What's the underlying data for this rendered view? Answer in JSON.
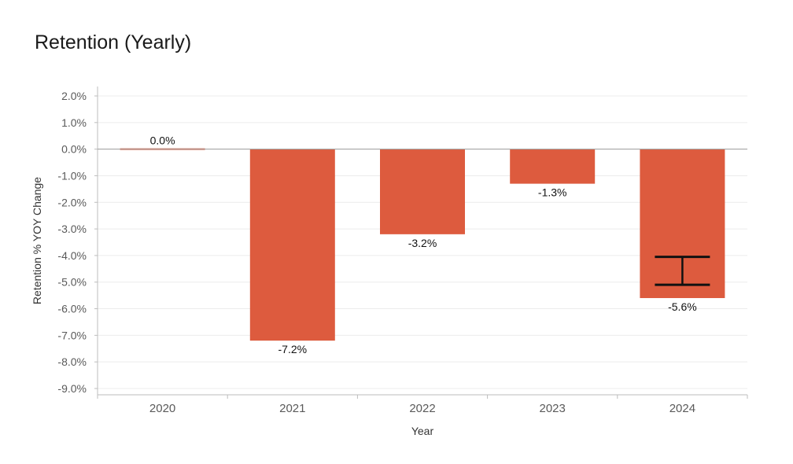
{
  "chart_data": {
    "type": "bar",
    "title": "Retention (Yearly)",
    "xlabel": "Year",
    "ylabel": "Retention % YOY Change",
    "categories": [
      "2020",
      "2021",
      "2022",
      "2023",
      "2024"
    ],
    "values": [
      0.0,
      -7.2,
      -3.2,
      -1.3,
      -5.6
    ],
    "data_labels": [
      "0.0%",
      "-7.2%",
      "-3.2%",
      "-1.3%",
      "-5.6%"
    ],
    "yticks": [
      2.0,
      1.0,
      0.0,
      -1.0,
      -2.0,
      -3.0,
      -4.0,
      -5.0,
      -6.0,
      -7.0,
      -8.0,
      -9.0
    ],
    "ytick_labels": [
      "2.0%",
      "1.0%",
      "0.0%",
      "-1.0%",
      "-2.0%",
      "-3.0%",
      "-4.0%",
      "-5.0%",
      "-6.0%",
      "-7.0%",
      "-8.0%",
      "-9.0%"
    ],
    "ylim": [
      -9.0,
      2.0
    ],
    "grid": true,
    "bar_color": "#dd5b3e",
    "error_bar": {
      "category": "2024",
      "low": -5.1,
      "high": -4.05
    }
  }
}
